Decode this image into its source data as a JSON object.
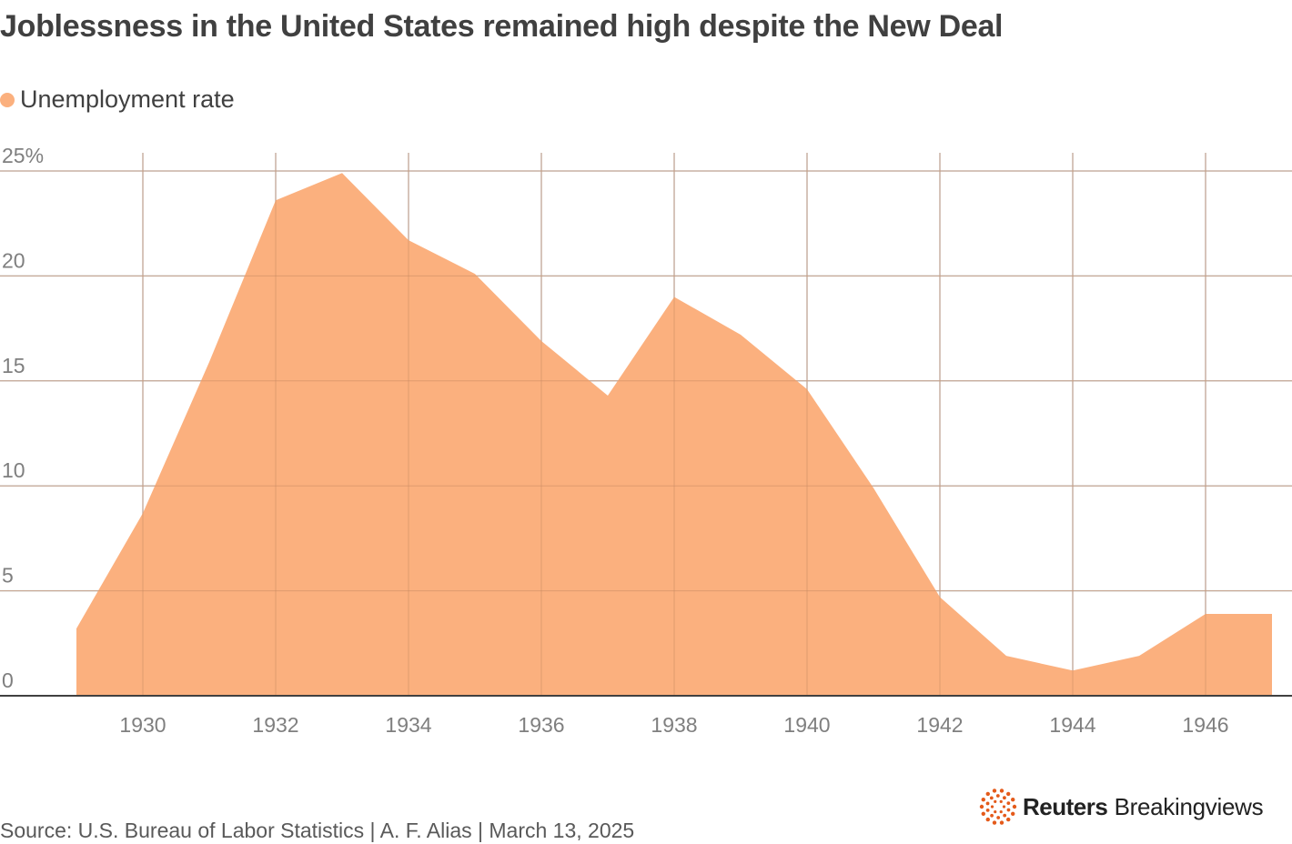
{
  "title": "Joblessness in the United States remained high despite the New Deal",
  "source": "Source: U.S. Bureau of Labor Statistics | A. F. Alias | March 13, 2025",
  "brand": {
    "name_bold": "Reuters",
    "name_regular": "Breakingviews",
    "logo_icon": "reuters-dots-logo-icon",
    "logo_color": "#e45a1a"
  },
  "colors": {
    "area": "#fbb07e",
    "grid": "#c8c8c8",
    "axis": "#404040",
    "tick_text": "#7f7f7f"
  },
  "chart_data": {
    "type": "area",
    "legend": {
      "entries": [
        "Unemployment rate"
      ],
      "placement": "top-left"
    },
    "series": [
      {
        "name": "Unemployment rate",
        "color": "#fbb07e",
        "x": [
          1929,
          1930,
          1931,
          1932,
          1933,
          1934,
          1935,
          1936,
          1937,
          1938,
          1939,
          1940,
          1941,
          1942,
          1943,
          1944,
          1945,
          1946,
          1947
        ],
        "values": [
          3.2,
          8.7,
          15.9,
          23.6,
          24.9,
          21.7,
          20.1,
          16.9,
          14.3,
          19.0,
          17.2,
          14.6,
          9.9,
          4.7,
          1.9,
          1.2,
          1.9,
          3.9,
          3.9
        ]
      }
    ],
    "xlim": [
      1928,
      1948
    ],
    "ylim": [
      0,
      25
    ],
    "yticks": [
      0,
      5,
      10,
      15,
      20,
      25
    ],
    "ytick_labels": [
      "0",
      "5",
      "10",
      "15",
      "20",
      "25%"
    ],
    "xticks": [
      1930,
      1932,
      1934,
      1936,
      1938,
      1940,
      1942,
      1944,
      1946
    ],
    "xtick_labels": [
      "1930",
      "1932",
      "1934",
      "1936",
      "1938",
      "1940",
      "1942",
      "1944",
      "1946"
    ],
    "grid": {
      "horizontal": true,
      "vertical": true
    },
    "xlabel": "",
    "ylabel": ""
  }
}
